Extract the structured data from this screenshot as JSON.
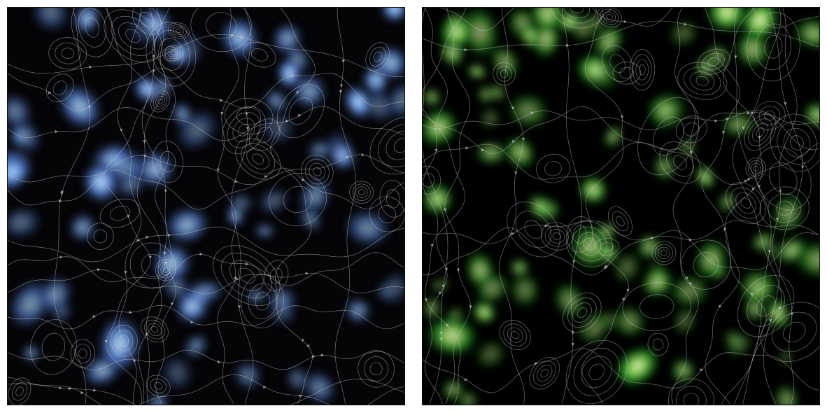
{
  "panels": [
    {
      "colormap": "blue",
      "palette": [
        "#050507",
        "#2b3559",
        "#4f7fe0",
        "#9fd4ff",
        "#ffffff"
      ],
      "blob_count": 70,
      "seed": 7
    },
    {
      "colormap": "green",
      "palette": [
        "#000000",
        "#0c3a12",
        "#2fae2a",
        "#c6ee7a",
        "#ffffff"
      ],
      "blob_count": 90,
      "seed": 23
    }
  ],
  "streamline_color": "#c8c8c8"
}
